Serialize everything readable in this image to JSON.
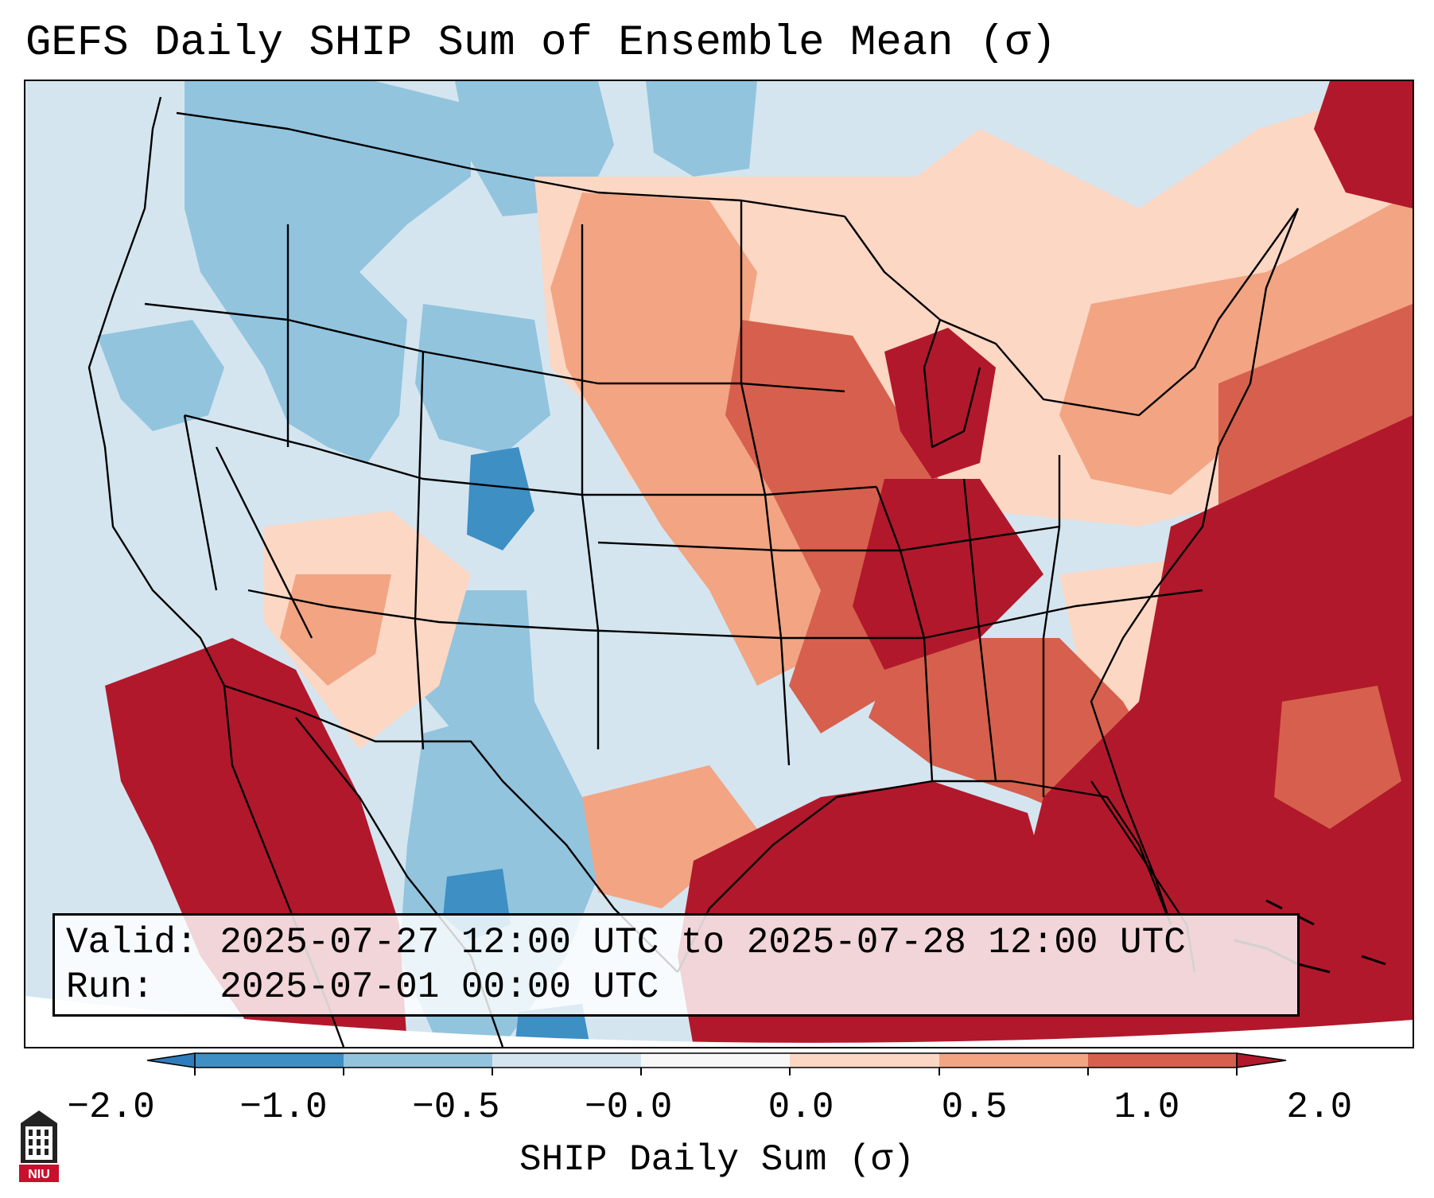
{
  "title": "GEFS Daily SHIP Sum of Ensemble Mean (σ)",
  "info": {
    "valid_label": "Valid:",
    "valid_value": "2025-07-27 12:00 UTC to 2025-07-28 12:00 UTC",
    "run_label": "Run:",
    "run_value": "2025-07-01 00:00 UTC"
  },
  "colorbar": {
    "label": "SHIP Daily Sum (σ)",
    "bins": [
      {
        "min": "below",
        "max": -2.0,
        "color": "#2f7cbc"
      },
      {
        "min": -2.0,
        "max": -1.0,
        "color": "#3d8fc4"
      },
      {
        "min": -1.0,
        "max": -0.5,
        "color": "#92c4de"
      },
      {
        "min": -0.5,
        "max": -0.0,
        "color": "#d4e5f0"
      },
      {
        "min": -0.0,
        "max": 0.0,
        "color": "#f8f8f8"
      },
      {
        "min": 0.0,
        "max": 0.5,
        "color": "#fbd7c4"
      },
      {
        "min": 0.5,
        "max": 1.0,
        "color": "#f2a483"
      },
      {
        "min": 1.0,
        "max": 2.0,
        "color": "#d6604d"
      },
      {
        "min": 2.0,
        "max": "above",
        "color": "#b2182b"
      }
    ],
    "tick_labels": [
      "−2.0",
      "−1.0",
      "−0.5",
      "−0.0",
      "0.0",
      "0.5",
      "1.0",
      "2.0"
    ]
  },
  "map": {
    "region": "Contiguous United States",
    "field_regions": [
      {
        "area": "Pacific Northwest",
        "category": "-0.5 to -0.0"
      },
      {
        "area": "Northern Rockies",
        "category": "-1.0 to -0.5"
      },
      {
        "area": "Colorado",
        "category": "-2.0 to -1.0"
      },
      {
        "area": "Northern Plains",
        "category": "0.5 to 1.0"
      },
      {
        "area": "Great Lakes",
        "category": "above 2.0"
      },
      {
        "area": "Ohio and Tennessee Valleys",
        "category": "above 2.0"
      },
      {
        "area": "Texas",
        "category": "-0.5 to -0.0"
      },
      {
        "area": "Gulf of Mexico",
        "category": "above 2.0"
      },
      {
        "area": "Western Atlantic",
        "category": "above 2.0"
      },
      {
        "area": "Southwest and Baja California",
        "category": "above 2.0"
      },
      {
        "area": "Southeast",
        "category": "1.0 to 2.0"
      },
      {
        "area": "Northeast",
        "category": "0.0 to 0.5"
      }
    ]
  },
  "logo": {
    "text": "NIU"
  }
}
